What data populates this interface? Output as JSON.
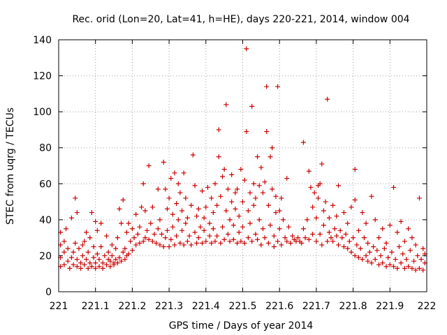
{
  "chart_data": {
    "type": "scatter",
    "title": "Rec. orid (Lon=20, Lat=41, h=HE), days 220-221, 2014, window 004",
    "xlabel": "GPS time / Days of year 2014",
    "ylabel": "STEC from uqrg / TECUs",
    "xlim": [
      221,
      222
    ],
    "ylim": [
      0,
      140
    ],
    "xticks": [
      "221",
      "221.1",
      "221.2",
      "221.3",
      "221.4",
      "221.5",
      "221.6",
      "221.7",
      "221.8",
      "221.9",
      "222"
    ],
    "yticks": [
      "0",
      "20",
      "40",
      "60",
      "80",
      "100",
      "120",
      "140"
    ],
    "grid": true,
    "marker": "+",
    "color": "#cc0000",
    "points": [
      [
        221.005,
        14
      ],
      [
        221.005,
        19
      ],
      [
        221.005,
        26
      ],
      [
        221.005,
        33
      ],
      [
        221.015,
        15
      ],
      [
        221.015,
        22
      ],
      [
        221.015,
        28
      ],
      [
        221.02,
        35
      ],
      [
        221.025,
        17
      ],
      [
        221.025,
        24
      ],
      [
        221.03,
        13
      ],
      [
        221.035,
        19
      ],
      [
        221.035,
        41
      ],
      [
        221.04,
        15
      ],
      [
        221.04,
        22
      ],
      [
        221.045,
        52
      ],
      [
        221.045,
        27
      ],
      [
        221.05,
        14
      ],
      [
        221.05,
        18
      ],
      [
        221.05,
        44
      ],
      [
        221.055,
        24
      ],
      [
        221.06,
        13
      ],
      [
        221.06,
        16
      ],
      [
        221.065,
        20
      ],
      [
        221.065,
        26
      ],
      [
        221.07,
        15
      ],
      [
        221.07,
        28
      ],
      [
        221.075,
        18
      ],
      [
        221.075,
        33
      ],
      [
        221.08,
        13
      ],
      [
        221.08,
        22
      ],
      [
        221.085,
        16
      ],
      [
        221.085,
        30
      ],
      [
        221.09,
        14
      ],
      [
        221.09,
        44
      ],
      [
        221.095,
        19
      ],
      [
        221.095,
        25
      ],
      [
        221.1,
        13
      ],
      [
        221.1,
        16
      ],
      [
        221.1,
        39
      ],
      [
        221.105,
        21
      ],
      [
        221.105,
        34
      ],
      [
        221.11,
        14
      ],
      [
        221.11,
        18
      ],
      [
        221.115,
        25
      ],
      [
        221.115,
        38
      ],
      [
        221.12,
        13
      ],
      [
        221.12,
        16
      ],
      [
        221.125,
        20
      ],
      [
        221.13,
        15
      ],
      [
        221.13,
        31
      ],
      [
        221.135,
        18
      ],
      [
        221.135,
        22
      ],
      [
        221.14,
        14
      ],
      [
        221.14,
        17
      ],
      [
        221.145,
        20
      ],
      [
        221.145,
        26
      ],
      [
        221.15,
        15
      ],
      [
        221.15,
        16
      ],
      [
        221.155,
        18
      ],
      [
        221.155,
        24
      ],
      [
        221.16,
        16
      ],
      [
        221.16,
        30
      ],
      [
        221.165,
        19
      ],
      [
        221.165,
        46
      ],
      [
        221.17,
        17
      ],
      [
        221.17,
        38
      ],
      [
        221.175,
        22
      ],
      [
        221.175,
        51
      ],
      [
        221.18,
        18
      ],
      [
        221.18,
        24
      ],
      [
        221.185,
        20
      ],
      [
        221.185,
        33
      ],
      [
        221.19,
        21
      ],
      [
        221.19,
        38
      ],
      [
        221.195,
        28
      ],
      [
        221.2,
        23
      ],
      [
        221.2,
        35
      ],
      [
        221.205,
        30
      ],
      [
        221.21,
        26
      ],
      [
        221.21,
        43
      ],
      [
        221.215,
        32
      ],
      [
        221.22,
        27
      ],
      [
        221.22,
        36
      ],
      [
        221.225,
        47
      ],
      [
        221.23,
        28
      ],
      [
        221.23,
        60
      ],
      [
        221.235,
        30
      ],
      [
        221.235,
        45
      ],
      [
        221.24,
        34
      ],
      [
        221.245,
        29
      ],
      [
        221.245,
        70
      ],
      [
        221.25,
        38
      ],
      [
        221.255,
        28
      ],
      [
        221.255,
        47
      ],
      [
        221.26,
        32
      ],
      [
        221.265,
        27
      ],
      [
        221.27,
        57
      ],
      [
        221.27,
        35
      ],
      [
        221.275,
        26
      ],
      [
        221.275,
        40
      ],
      [
        221.28,
        32
      ],
      [
        221.285,
        25
      ],
      [
        221.285,
        72
      ],
      [
        221.29,
        30
      ],
      [
        221.29,
        57
      ],
      [
        221.295,
        34
      ],
      [
        221.295,
        46
      ],
      [
        221.3,
        25
      ],
      [
        221.3,
        52
      ],
      [
        221.305,
        29
      ],
      [
        221.305,
        63
      ],
      [
        221.31,
        36
      ],
      [
        221.31,
        43
      ],
      [
        221.315,
        26
      ],
      [
        221.315,
        66
      ],
      [
        221.32,
        31
      ],
      [
        221.32,
        49
      ],
      [
        221.325,
        40
      ],
      [
        221.325,
        60
      ],
      [
        221.33,
        27
      ],
      [
        221.33,
        55
      ],
      [
        221.335,
        34
      ],
      [
        221.335,
        45
      ],
      [
        221.34,
        26
      ],
      [
        221.34,
        66
      ],
      [
        221.345,
        38
      ],
      [
        221.345,
        52
      ],
      [
        221.35,
        28
      ],
      [
        221.35,
        41
      ],
      [
        221.355,
        31
      ],
      [
        221.36,
        26
      ],
      [
        221.36,
        48
      ],
      [
        221.365,
        76
      ],
      [
        221.37,
        33
      ],
      [
        221.37,
        59
      ],
      [
        221.375,
        27
      ],
      [
        221.375,
        42
      ],
      [
        221.38,
        30
      ],
      [
        221.38,
        46
      ],
      [
        221.385,
        36
      ],
      [
        221.39,
        27
      ],
      [
        221.39,
        56
      ],
      [
        221.395,
        34
      ],
      [
        221.395,
        41
      ],
      [
        221.4,
        28
      ],
      [
        221.4,
        47
      ],
      [
        221.405,
        58
      ],
      [
        221.41,
        31
      ],
      [
        221.41,
        38
      ],
      [
        221.415,
        27
      ],
      [
        221.415,
        52
      ],
      [
        221.42,
        35
      ],
      [
        221.42,
        44
      ],
      [
        221.425,
        28
      ],
      [
        221.425,
        60
      ],
      [
        221.43,
        31
      ],
      [
        221.43,
        48
      ],
      [
        221.435,
        75
      ],
      [
        221.435,
        90
      ],
      [
        221.44,
        27
      ],
      [
        221.44,
        53
      ],
      [
        221.445,
        36
      ],
      [
        221.445,
        64
      ],
      [
        221.45,
        29
      ],
      [
        221.45,
        68
      ],
      [
        221.455,
        104
      ],
      [
        221.455,
        45
      ],
      [
        221.46,
        32
      ],
      [
        221.46,
        57
      ],
      [
        221.465,
        28
      ],
      [
        221.465,
        40
      ],
      [
        221.47,
        50
      ],
      [
        221.47,
        65
      ],
      [
        221.475,
        29
      ],
      [
        221.475,
        37
      ],
      [
        221.48,
        55
      ],
      [
        221.48,
        46
      ],
      [
        221.485,
        27
      ],
      [
        221.485,
        57
      ],
      [
        221.49,
        33
      ],
      [
        221.49,
        42
      ],
      [
        221.495,
        28
      ],
      [
        221.495,
        68
      ],
      [
        221.5,
        36
      ],
      [
        221.5,
        50
      ],
      [
        221.505,
        27
      ],
      [
        221.505,
        62
      ],
      [
        221.51,
        135
      ],
      [
        221.51,
        89
      ],
      [
        221.515,
        30
      ],
      [
        221.515,
        45
      ],
      [
        221.52,
        55
      ],
      [
        221.52,
        38
      ],
      [
        221.525,
        103
      ],
      [
        221.525,
        28
      ],
      [
        221.53,
        48
      ],
      [
        221.53,
        60
      ],
      [
        221.535,
        32
      ],
      [
        221.535,
        52
      ],
      [
        221.54,
        75
      ],
      [
        221.54,
        29
      ],
      [
        221.545,
        40
      ],
      [
        221.545,
        59
      ],
      [
        221.55,
        69
      ],
      [
        221.55,
        26
      ],
      [
        221.555,
        35
      ],
      [
        221.555,
        55
      ],
      [
        221.56,
        61
      ],
      [
        221.56,
        30
      ],
      [
        221.565,
        114
      ],
      [
        221.565,
        89
      ],
      [
        221.57,
        48
      ],
      [
        221.57,
        27
      ],
      [
        221.575,
        75
      ],
      [
        221.575,
        37
      ],
      [
        221.58,
        80
      ],
      [
        221.58,
        57
      ],
      [
        221.585,
        25
      ],
      [
        221.585,
        31
      ],
      [
        221.59,
        44
      ],
      [
        221.59,
        53
      ],
      [
        221.595,
        114
      ],
      [
        221.595,
        28
      ],
      [
        221.6,
        35
      ],
      [
        221.6,
        45
      ],
      [
        221.605,
        52
      ],
      [
        221.605,
        26
      ],
      [
        221.61,
        40
      ],
      [
        221.615,
        30
      ],
      [
        221.62,
        63
      ],
      [
        221.62,
        28
      ],
      [
        221.625,
        36
      ],
      [
        221.63,
        27
      ],
      [
        221.635,
        31
      ],
      [
        221.64,
        29
      ],
      [
        221.645,
        28
      ],
      [
        221.65,
        30
      ],
      [
        221.655,
        28
      ],
      [
        221.66,
        27
      ],
      [
        221.665,
        35
      ],
      [
        221.665,
        83
      ],
      [
        221.67,
        30
      ],
      [
        221.675,
        40
      ],
      [
        221.68,
        67
      ],
      [
        221.68,
        29
      ],
      [
        221.685,
        58
      ],
      [
        221.69,
        32
      ],
      [
        221.69,
        47
      ],
      [
        221.695,
        55
      ],
      [
        221.7,
        28
      ],
      [
        221.7,
        41
      ],
      [
        221.705,
        52
      ],
      [
        221.705,
        59
      ],
      [
        221.71,
        32
      ],
      [
        221.71,
        60
      ],
      [
        221.715,
        71
      ],
      [
        221.715,
        26
      ],
      [
        221.72,
        45
      ],
      [
        221.72,
        37
      ],
      [
        221.725,
        50
      ],
      [
        221.73,
        28
      ],
      [
        221.73,
        107
      ],
      [
        221.735,
        33
      ],
      [
        221.735,
        41
      ],
      [
        221.74,
        30
      ],
      [
        221.745,
        28
      ],
      [
        221.745,
        48
      ],
      [
        221.75,
        35
      ],
      [
        221.755,
        31
      ],
      [
        221.755,
        42
      ],
      [
        221.76,
        26
      ],
      [
        221.76,
        59
      ],
      [
        221.765,
        34
      ],
      [
        221.77,
        30
      ],
      [
        221.775,
        25
      ],
      [
        221.775,
        44
      ],
      [
        221.78,
        32
      ],
      [
        221.785,
        24
      ],
      [
        221.785,
        38
      ],
      [
        221.79,
        28
      ],
      [
        221.795,
        22
      ],
      [
        221.795,
        47
      ],
      [
        221.8,
        30
      ],
      [
        221.805,
        20
      ],
      [
        221.805,
        51
      ],
      [
        221.805,
        68
      ],
      [
        221.81,
        26
      ],
      [
        221.815,
        19
      ],
      [
        221.815,
        34
      ],
      [
        221.82,
        24
      ],
      [
        221.825,
        18
      ],
      [
        221.825,
        44
      ],
      [
        221.83,
        30
      ],
      [
        221.835,
        20
      ],
      [
        221.835,
        38
      ],
      [
        221.84,
        17
      ],
      [
        221.84,
        27
      ],
      [
        221.845,
        22
      ],
      [
        221.85,
        16
      ],
      [
        221.85,
        53
      ],
      [
        221.855,
        25
      ],
      [
        221.86,
        18
      ],
      [
        221.86,
        40
      ],
      [
        221.865,
        23
      ],
      [
        221.87,
        15
      ],
      [
        221.87,
        30
      ],
      [
        221.875,
        20
      ],
      [
        221.88,
        16
      ],
      [
        221.88,
        35
      ],
      [
        221.885,
        24
      ],
      [
        221.89,
        14
      ],
      [
        221.89,
        27
      ],
      [
        221.895,
        19
      ],
      [
        221.9,
        15
      ],
      [
        221.9,
        37
      ],
      [
        221.905,
        22
      ],
      [
        221.91,
        14
      ],
      [
        221.91,
        58
      ],
      [
        221.915,
        18
      ],
      [
        221.92,
        13
      ],
      [
        221.92,
        33
      ],
      [
        221.925,
        25
      ],
      [
        221.93,
        16
      ],
      [
        221.93,
        39
      ],
      [
        221.935,
        21
      ],
      [
        221.94,
        13
      ],
      [
        221.94,
        28
      ],
      [
        221.945,
        18
      ],
      [
        221.95,
        14
      ],
      [
        221.95,
        35
      ],
      [
        221.955,
        23
      ],
      [
        221.96,
        13
      ],
      [
        221.96,
        30
      ],
      [
        221.965,
        17
      ],
      [
        221.97,
        12
      ],
      [
        221.97,
        26
      ],
      [
        221.975,
        20
      ],
      [
        221.98,
        13
      ],
      [
        221.98,
        52
      ],
      [
        221.985,
        18
      ],
      [
        221.99,
        12
      ],
      [
        221.99,
        24
      ],
      [
        221.995,
        16
      ],
      [
        221.995,
        21
      ]
    ]
  }
}
